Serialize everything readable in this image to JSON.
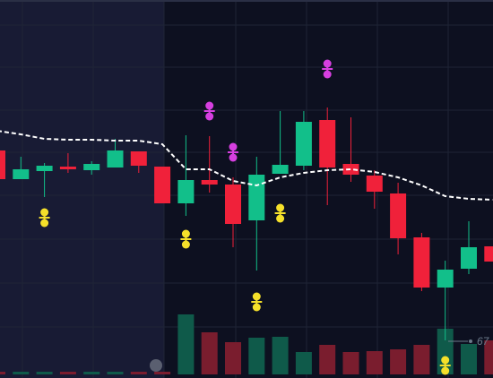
{
  "chart_data": {
    "type": "candlestick",
    "ylim": [
      0,
      422
    ],
    "up_color": "#12bf8a",
    "down_color": "#f0213a",
    "volume_up_color": "#0f5a4a",
    "volume_down_color": "#7a1d2e",
    "ma_color": "#ffffff",
    "open": [
      254,
      222,
      231,
      236,
      232,
      235,
      253,
      236,
      195,
      221,
      216,
      176,
      228,
      237,
      288,
      239,
      226,
      206,
      157,
      101,
      122,
      147
    ],
    "close": [
      222,
      233,
      237,
      233,
      239,
      254,
      237,
      195,
      221,
      216,
      172,
      227,
      238,
      286,
      235,
      227,
      208,
      156,
      101,
      121,
      146,
      130
    ],
    "high": [
      254,
      247,
      240,
      251,
      242,
      267,
      253,
      236,
      271,
      270,
      224,
      247,
      298,
      298,
      302,
      291,
      232,
      218,
      162,
      131,
      175,
      147
    ],
    "low": [
      222,
      222,
      202,
      229,
      227,
      235,
      229,
      195,
      181,
      207,
      146,
      120,
      228,
      232,
      193,
      219,
      189,
      138,
      97,
      42,
      116,
      130
    ],
    "volume": [
      3,
      3,
      3,
      3,
      3,
      3,
      3,
      3,
      67,
      47,
      36,
      41,
      42,
      25,
      33,
      25,
      26,
      28,
      33,
      51,
      34,
      38
    ],
    "ma": [
      276,
      272,
      267,
      266,
      266,
      265,
      265,
      261,
      233,
      233,
      220,
      215,
      224,
      229,
      232,
      233,
      230,
      224,
      215,
      203,
      200,
      199
    ],
    "markers": [
      {
        "index": 2,
        "value": 179,
        "color": "#f5e02a"
      },
      {
        "index": 8,
        "value": 155,
        "color": "#f5e02a"
      },
      {
        "index": 11,
        "value": 85,
        "color": "#f5e02a"
      },
      {
        "index": 12,
        "value": 184,
        "color": "#f5e02a"
      },
      {
        "index": 19,
        "value": 14,
        "color": "#f5e02a"
      },
      {
        "index": 9,
        "value": 298,
        "color": "#d63fe0"
      },
      {
        "index": 10,
        "value": 252,
        "color": "#d63fe0"
      },
      {
        "index": 14,
        "value": 345,
        "color": "#d63fe0"
      }
    ],
    "price_label": "67"
  }
}
